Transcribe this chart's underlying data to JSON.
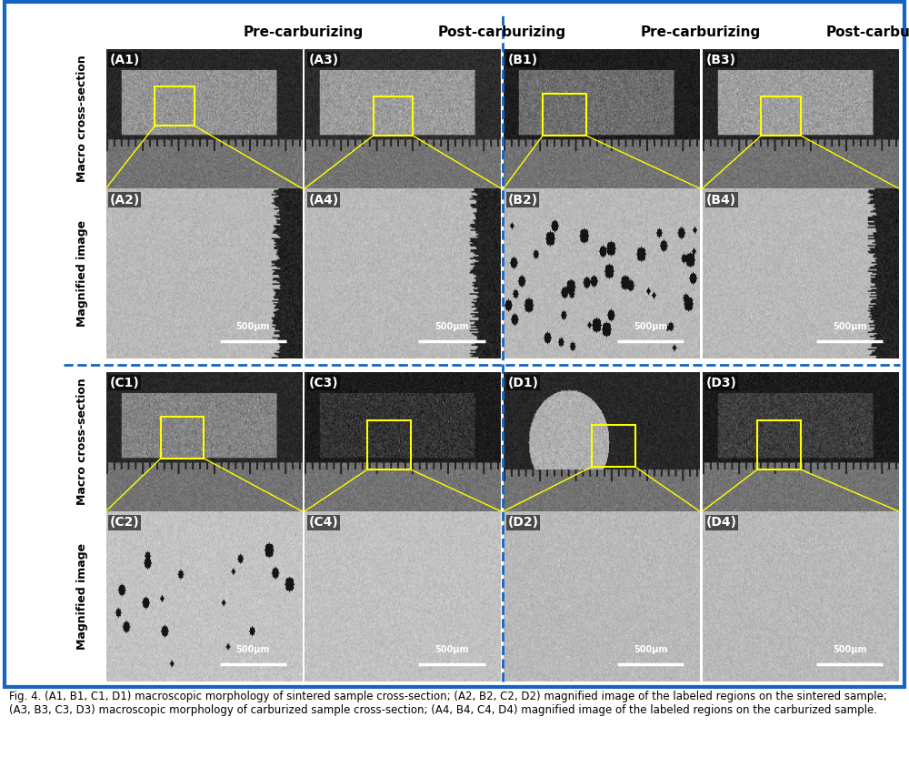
{
  "figure_width": 10.0,
  "figure_height": 8.32,
  "dpi": 100,
  "outer_border_color": "#1565C0",
  "outer_border_linewidth": 3,
  "dashed_divider_color": "#1565C0",
  "background_color": "#ffffff",
  "top_labels": [
    "Pre-carburizing",
    "Post-carburizing",
    "Pre-carburizing",
    "Post-carburizing"
  ],
  "scale_bar_text": "500μm",
  "caption": "Fig. 4. (A1, B1, C1, D1) macroscopic morphology of sintered sample cross-section; (A2, B2, C2, D2) magnified image of the labeled regions on the sintered sample;\n(A3, B3, C3, D3) macroscopic morphology of carburized sample cross-section; (A4, B4, C4, D4) magnified image of the labeled regions on the carburized sample.",
  "caption_fontsize": 8.5,
  "header_fontsize": 11,
  "panel_label_fontsize": 10,
  "row_label_fontsize": 9
}
